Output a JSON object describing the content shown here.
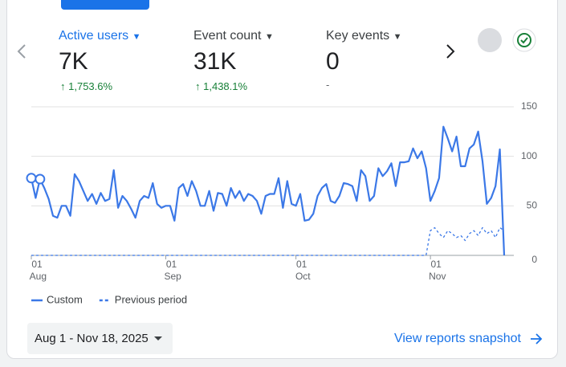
{
  "metrics": [
    {
      "label": "Active users",
      "value": "7K",
      "change": "1,753.6%"
    },
    {
      "label": "Event count",
      "value": "31K",
      "change": "1,438.1%"
    },
    {
      "label": "Key events",
      "value": "0",
      "change": "-"
    }
  ],
  "date_range": "Aug 1 - Nov 18, 2025",
  "link": "View reports snapshot",
  "chart_data": {
    "type": "line",
    "categories": [
      "01 Aug",
      null,
      null,
      null,
      null,
      null,
      null,
      null,
      null,
      null,
      null,
      null,
      null,
      null,
      null,
      null,
      null,
      null,
      null,
      null,
      null,
      null,
      null,
      null,
      null,
      null,
      null,
      null,
      null,
      null,
      null,
      "01 Sep",
      null,
      null,
      null,
      null,
      null,
      null,
      null,
      null,
      null,
      null,
      null,
      null,
      null,
      null,
      null,
      null,
      null,
      null,
      null,
      null,
      null,
      null,
      null,
      null,
      null,
      null,
      null,
      null,
      null,
      "01 Oct",
      null,
      null,
      null,
      null,
      null,
      null,
      null,
      null,
      null,
      null,
      null,
      null,
      null,
      null,
      null,
      null,
      null,
      null,
      null,
      null,
      null,
      null,
      null,
      null,
      null,
      null,
      null,
      null,
      null,
      null,
      "01 Nov",
      null,
      null,
      null,
      null,
      null,
      null,
      null,
      null,
      null,
      null,
      null,
      null,
      null,
      null,
      null,
      null,
      null
    ],
    "series": [
      {
        "name": "Custom",
        "color": "#3b78e7",
        "dashed": false,
        "values": [
          78,
          58,
          77,
          68,
          57,
          40,
          38,
          50,
          50,
          40,
          82,
          75,
          65,
          55,
          62,
          52,
          63,
          55,
          57,
          86,
          48,
          60,
          55,
          47,
          38,
          55,
          60,
          58,
          73,
          52,
          48,
          50,
          50,
          35,
          68,
          72,
          60,
          75,
          65,
          50,
          50,
          65,
          45,
          63,
          62,
          50,
          68,
          58,
          65,
          55,
          62,
          60,
          55,
          42,
          60,
          62,
          62,
          78,
          48,
          75,
          52,
          50,
          62,
          35,
          36,
          42,
          60,
          68,
          72,
          55,
          53,
          60,
          73,
          72,
          70,
          55,
          86,
          80,
          55,
          60,
          88,
          80,
          85,
          93,
          70,
          94,
          94,
          95,
          108,
          98,
          105,
          88,
          55,
          65,
          78,
          130,
          118,
          105,
          120,
          90,
          90,
          108,
          112,
          125,
          95,
          52,
          58,
          70,
          107,
          0
        ]
      },
      {
        "name": "Previous period",
        "color": "#3b78e7",
        "dashed": true,
        "values": [
          0,
          0,
          0,
          0,
          0,
          0,
          0,
          0,
          0,
          0,
          0,
          0,
          0,
          0,
          0,
          0,
          0,
          0,
          0,
          0,
          0,
          0,
          0,
          0,
          0,
          0,
          0,
          0,
          0,
          0,
          0,
          0,
          0,
          0,
          0,
          0,
          0,
          0,
          0,
          0,
          0,
          0,
          0,
          0,
          0,
          0,
          0,
          0,
          0,
          0,
          0,
          0,
          0,
          0,
          0,
          0,
          0,
          0,
          0,
          0,
          0,
          0,
          0,
          0,
          0,
          0,
          0,
          0,
          0,
          0,
          0,
          0,
          0,
          0,
          0,
          0,
          0,
          0,
          0,
          0,
          0,
          0,
          0,
          0,
          0,
          0,
          0,
          0,
          0,
          0,
          0,
          0,
          25,
          28,
          22,
          18,
          25,
          22,
          18,
          20,
          15,
          22,
          25,
          20,
          28,
          22,
          25,
          18,
          28,
          25
        ]
      }
    ],
    "ylim": [
      0,
      150
    ],
    "yticks": [
      0,
      50,
      100,
      150
    ],
    "grid": true
  }
}
